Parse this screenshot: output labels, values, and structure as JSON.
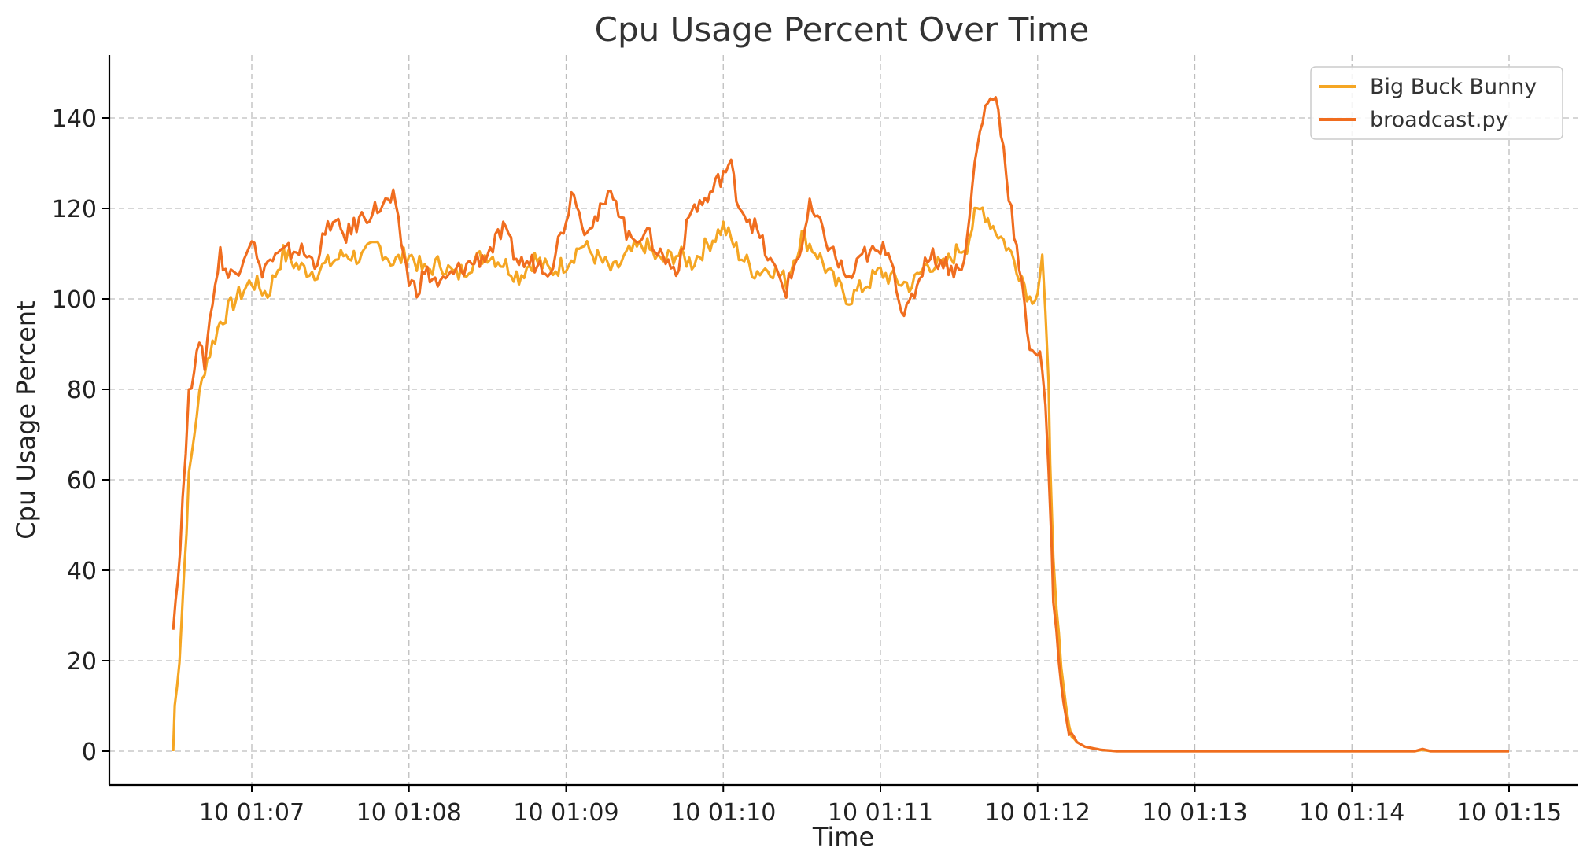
{
  "chart_data": {
    "type": "line",
    "title": "Cpu Usage Percent Over Time",
    "xlabel": "Time",
    "ylabel": "Cpu Usage Percent",
    "ylim": [
      -7,
      154
    ],
    "yticks": [
      0,
      20,
      40,
      60,
      80,
      100,
      120,
      140
    ],
    "xlim_minutes": [
      6.0,
      15.42
    ],
    "xticks": [
      {
        "value": 7,
        "label": "10 01:07"
      },
      {
        "value": 8,
        "label": "10 01:08"
      },
      {
        "value": 9,
        "label": "10 01:09"
      },
      {
        "value": 10,
        "label": "10 01:10"
      },
      {
        "value": 11,
        "label": "10 01:11"
      },
      {
        "value": 12,
        "label": "10 01:12"
      },
      {
        "value": 13,
        "label": "10 01:13"
      },
      {
        "value": 14,
        "label": "10 01:14"
      },
      {
        "value": 15,
        "label": "10 01:15"
      }
    ],
    "grid": true,
    "legend_position": "top-right",
    "series": [
      {
        "name": "Big Buck Bunny",
        "color": "#f5a623",
        "x": [
          6.5,
          6.51,
          6.54,
          6.57,
          6.6,
          6.65,
          6.7,
          6.8,
          6.9,
          7.0,
          7.1,
          7.2,
          7.3,
          7.4,
          7.5,
          7.6,
          7.7,
          7.8,
          7.9,
          8.0,
          8.1,
          8.2,
          8.3,
          8.4,
          8.5,
          8.6,
          8.7,
          8.8,
          8.9,
          9.0,
          9.1,
          9.2,
          9.3,
          9.4,
          9.5,
          9.6,
          9.7,
          9.8,
          9.9,
          10.0,
          10.1,
          10.2,
          10.3,
          10.4,
          10.5,
          10.6,
          10.7,
          10.8,
          10.9,
          11.0,
          11.1,
          11.2,
          11.3,
          11.4,
          11.5,
          11.55,
          11.6,
          11.65,
          11.7,
          11.8,
          11.9,
          11.95,
          12.0,
          12.03,
          12.05,
          12.07,
          12.08,
          12.1,
          12.12,
          12.15,
          12.18,
          12.2,
          12.25,
          12.3,
          12.4,
          12.5,
          13.0,
          13.5,
          14.0,
          14.4,
          14.45,
          14.5,
          15.0
        ],
        "y": [
          0,
          10,
          20,
          40,
          60,
          75,
          85,
          95,
          100,
          104,
          101,
          110,
          107,
          106,
          108,
          110,
          109,
          112,
          108,
          110,
          106,
          108,
          105,
          108,
          110,
          108,
          105,
          109,
          106,
          108,
          112,
          109,
          106,
          110,
          112,
          108,
          110,
          108,
          112,
          116,
          110,
          106,
          107,
          104,
          114,
          110,
          104,
          100,
          103,
          106,
          104,
          103,
          108,
          107,
          111,
          112,
          118,
          120,
          117,
          112,
          105,
          100,
          102,
          109,
          95,
          80,
          65,
          45,
          30,
          18,
          10,
          5,
          2,
          1,
          0.3,
          0,
          0,
          0,
          0,
          0,
          0.3,
          0,
          0
        ]
      },
      {
        "name": "broadcast.py",
        "color": "#f06d1f",
        "x": [
          6.5,
          6.53,
          6.56,
          6.6,
          6.65,
          6.7,
          6.75,
          6.8,
          6.85,
          6.9,
          7.0,
          7.05,
          7.1,
          7.2,
          7.3,
          7.4,
          7.5,
          7.6,
          7.7,
          7.8,
          7.9,
          8.0,
          8.05,
          8.1,
          8.2,
          8.3,
          8.4,
          8.5,
          8.6,
          8.7,
          8.8,
          8.9,
          9.0,
          9.05,
          9.1,
          9.2,
          9.3,
          9.4,
          9.5,
          9.6,
          9.7,
          9.8,
          9.9,
          10.0,
          10.05,
          10.1,
          10.2,
          10.3,
          10.4,
          10.5,
          10.55,
          10.6,
          10.7,
          10.8,
          10.9,
          11.0,
          11.05,
          11.1,
          11.15,
          11.2,
          11.3,
          11.4,
          11.5,
          11.55,
          11.6,
          11.65,
          11.7,
          11.75,
          11.8,
          11.85,
          11.9,
          11.95,
          12.0,
          12.03,
          12.05,
          12.07,
          12.09,
          12.1,
          12.12,
          12.15,
          12.18,
          12.2,
          12.25,
          12.3,
          12.4,
          12.5,
          13.0,
          13.5,
          14.0,
          14.4,
          14.45,
          14.5,
          15.0
        ],
        "y": [
          29,
          38,
          55,
          78,
          90,
          86,
          100,
          110,
          105,
          106,
          114,
          106,
          108,
          110,
          111,
          108,
          117,
          114,
          118,
          120,
          122,
          104,
          102,
          106,
          103,
          106,
          108,
          110,
          115,
          108,
          108,
          107,
          118,
          125,
          116,
          118,
          124,
          113,
          115,
          110,
          106,
          120,
          122,
          128,
          129,
          121,
          116,
          108,
          102,
          112,
          120,
          117,
          110,
          104,
          110,
          110,
          112,
          104,
          95,
          100,
          110,
          108,
          106,
          112,
          130,
          140,
          145,
          143,
          128,
          115,
          102,
          90,
          88,
          85,
          75,
          60,
          45,
          35,
          25,
          15,
          8,
          4,
          2,
          1,
          0.3,
          0,
          0,
          0,
          0,
          0,
          0.5,
          0,
          0
        ]
      }
    ]
  }
}
